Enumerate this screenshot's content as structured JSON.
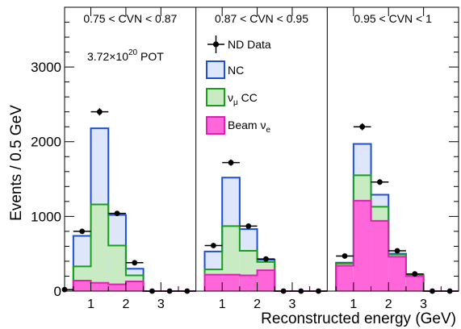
{
  "chart_data": {
    "type": "bar",
    "subtype": "stacked step histogram, three CVN panels",
    "xlabel": "Reconstructed energy (GeV)",
    "ylabel": "Events / 0.5 GeV",
    "ylim": [
      0,
      3800
    ],
    "yticks": [
      0,
      1000,
      2000,
      3000
    ],
    "yticks_text": [
      "0",
      "1000",
      "2000",
      "3000"
    ],
    "xticks": [
      1,
      2,
      3
    ],
    "xticks_text": [
      "1",
      "2",
      "3"
    ],
    "xlim_per_panel": [
      0.25,
      4.0
    ],
    "bin_edges": [
      0.5,
      1.0,
      1.5,
      2.0,
      2.5,
      3.0,
      3.5,
      4.0
    ],
    "pot_base": "3.72×10",
    "pot_exp": "20",
    "pot_unit": " POT",
    "legend": [
      {
        "key": "data",
        "label": "ND Data"
      },
      {
        "key": "nc",
        "label": "NC",
        "color": "#1f4fd6",
        "fill": "#dde6fb"
      },
      {
        "key": "numucc",
        "label": "ν",
        "sub": "μ",
        "suffix": " CC",
        "color": "#17a017",
        "fill": "#c8ebc4"
      },
      {
        "key": "beamnue",
        "label": "Beam ν",
        "sub": "e",
        "color": "#e020b4",
        "fill": "#ff66da"
      }
    ],
    "panels": [
      {
        "label": "0.75 < CVN < 0.87",
        "beam_nue": [
          140,
          110,
          90,
          130,
          0,
          0,
          0
        ],
        "numu_cc": [
          330,
          1160,
          610,
          210,
          0,
          0,
          0
        ],
        "total": [
          740,
          2180,
          1020,
          300,
          0,
          0,
          0
        ],
        "data": [
          800,
          2400,
          1040,
          380,
          0,
          0,
          0
        ],
        "data_x_err": [
          0.25,
          0.25,
          0.25,
          0.25,
          0.25,
          0.25,
          0.25
        ],
        "data_before": 20
      },
      {
        "label": "0.87 < CVN < 0.95",
        "beam_nue": [
          220,
          220,
          210,
          280,
          0,
          0,
          0
        ],
        "numu_cc": [
          290,
          870,
          540,
          390,
          0,
          0,
          0
        ],
        "total": [
          530,
          1520,
          830,
          420,
          0,
          0,
          0
        ],
        "data": [
          610,
          1720,
          870,
          430,
          0,
          0,
          0
        ],
        "data_x_err": [
          0.25,
          0.25,
          0.25,
          0.25,
          0.25,
          0.25,
          0.25
        ],
        "data_before": 0
      },
      {
        "label": "0.95 < CVN < 1",
        "beam_nue": [
          340,
          1210,
          940,
          460,
          200,
          0,
          0
        ],
        "numu_cc": [
          370,
          1550,
          1130,
          490,
          210,
          0,
          0
        ],
        "total": [
          380,
          1970,
          1290,
          500,
          220,
          0,
          0
        ],
        "data": [
          470,
          2200,
          1460,
          540,
          230,
          0,
          0
        ],
        "data_x_err": [
          0.25,
          0.25,
          0.25,
          0.25,
          0.25,
          0.25,
          0.25
        ],
        "data_before": 0
      }
    ]
  }
}
